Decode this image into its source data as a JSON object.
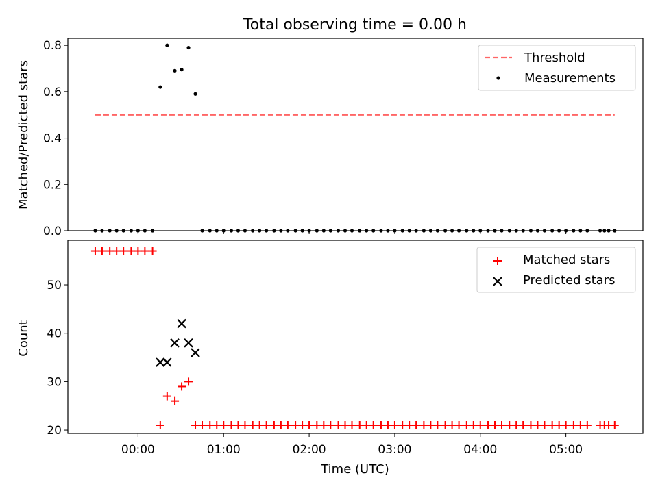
{
  "title": "Total observing time = 0.00 h",
  "chart_data": [
    {
      "type": "scatter",
      "ylabel": "Matched/Predicted stars",
      "xlim": [
        -0.82,
        5.9
      ],
      "ylim": [
        0,
        0.83
      ],
      "yticks": [
        "0.0",
        "0.2",
        "0.4",
        "0.6",
        "0.8"
      ],
      "legend_position": "top-right",
      "series": [
        {
          "name": "Threshold",
          "style": "dashed-line",
          "color": "#ff6666",
          "x": [
            -0.5,
            5.57
          ],
          "y": [
            0.5,
            0.5
          ]
        },
        {
          "name": "Measurements",
          "style": "dot",
          "color": "#000000",
          "x": [
            -0.5,
            -0.42,
            -0.33,
            -0.25,
            -0.17,
            -0.08,
            0.0,
            0.08,
            0.17,
            0.26,
            0.34,
            0.43,
            0.51,
            0.59,
            0.67,
            0.75,
            0.84,
            0.92,
            1.0,
            1.09,
            1.17,
            1.25,
            1.34,
            1.42,
            1.5,
            1.59,
            1.67,
            1.75,
            1.84,
            1.92,
            2.0,
            2.09,
            2.17,
            2.25,
            2.34,
            2.42,
            2.5,
            2.59,
            2.67,
            2.75,
            2.84,
            2.92,
            3.0,
            3.09,
            3.17,
            3.25,
            3.34,
            3.42,
            3.5,
            3.59,
            3.67,
            3.75,
            3.84,
            3.92,
            4.0,
            4.09,
            4.17,
            4.25,
            4.34,
            4.42,
            4.5,
            4.59,
            4.67,
            4.75,
            4.84,
            4.92,
            5.0,
            5.09,
            5.17,
            5.25,
            5.4,
            5.45,
            5.5,
            5.57
          ],
          "y": [
            0,
            0,
            0,
            0,
            0,
            0,
            0,
            0,
            0,
            0.62,
            0.8,
            0.69,
            0.695,
            0.79,
            0.59,
            0,
            0,
            0,
            0,
            0,
            0,
            0,
            0,
            0,
            0,
            0,
            0,
            0,
            0,
            0,
            0,
            0,
            0,
            0,
            0,
            0,
            0,
            0,
            0,
            0,
            0,
            0,
            0,
            0,
            0,
            0,
            0,
            0,
            0,
            0,
            0,
            0,
            0,
            0,
            0,
            0,
            0,
            0,
            0,
            0,
            0,
            0,
            0,
            0,
            0,
            0,
            0,
            0,
            0,
            0,
            0,
            0,
            0,
            0
          ]
        }
      ]
    },
    {
      "type": "scatter",
      "xlabel": "Time (UTC)",
      "ylabel": "Count",
      "xlim": [
        -0.82,
        5.9
      ],
      "ylim": [
        19.3,
        59.2
      ],
      "xticks": {
        "values": [
          0,
          1,
          2,
          3,
          4,
          5
        ],
        "labels": [
          "00:00",
          "01:00",
          "02:00",
          "03:00",
          "04:00",
          "05:00"
        ]
      },
      "yticks": [
        20,
        30,
        40,
        50
      ],
      "legend_position": "top-right",
      "series": [
        {
          "name": "Matched stars",
          "marker": "+",
          "color": "#ff0000",
          "x": [
            -0.5,
            -0.42,
            -0.33,
            -0.25,
            -0.17,
            -0.08,
            0.0,
            0.08,
            0.17,
            0.26,
            0.34,
            0.43,
            0.51,
            0.59,
            0.67,
            0.75,
            0.84,
            0.92,
            1.0,
            1.09,
            1.17,
            1.25,
            1.34,
            1.42,
            1.5,
            1.59,
            1.67,
            1.75,
            1.84,
            1.92,
            2.0,
            2.09,
            2.17,
            2.25,
            2.34,
            2.42,
            2.5,
            2.59,
            2.67,
            2.75,
            2.84,
            2.92,
            3.0,
            3.09,
            3.17,
            3.25,
            3.34,
            3.42,
            3.5,
            3.59,
            3.67,
            3.75,
            3.84,
            3.92,
            4.0,
            4.09,
            4.17,
            4.25,
            4.34,
            4.42,
            4.5,
            4.59,
            4.67,
            4.75,
            4.84,
            4.92,
            5.0,
            5.09,
            5.17,
            5.25,
            5.4,
            5.45,
            5.5,
            5.57
          ],
          "y": [
            57,
            57,
            57,
            57,
            57,
            57,
            57,
            57,
            57,
            21,
            27,
            26,
            29,
            30,
            21,
            21,
            21,
            21,
            21,
            21,
            21,
            21,
            21,
            21,
            21,
            21,
            21,
            21,
            21,
            21,
            21,
            21,
            21,
            21,
            21,
            21,
            21,
            21,
            21,
            21,
            21,
            21,
            21,
            21,
            21,
            21,
            21,
            21,
            21,
            21,
            21,
            21,
            21,
            21,
            21,
            21,
            21,
            21,
            21,
            21,
            21,
            21,
            21,
            21,
            21,
            21,
            21,
            21,
            21,
            21,
            21,
            21,
            21,
            21
          ]
        },
        {
          "name": "Predicted stars",
          "marker": "x",
          "color": "#000000",
          "x": [
            0.26,
            0.34,
            0.43,
            0.51,
            0.59,
            0.67
          ],
          "y": [
            34,
            34,
            38,
            42,
            38,
            36
          ]
        }
      ]
    }
  ]
}
